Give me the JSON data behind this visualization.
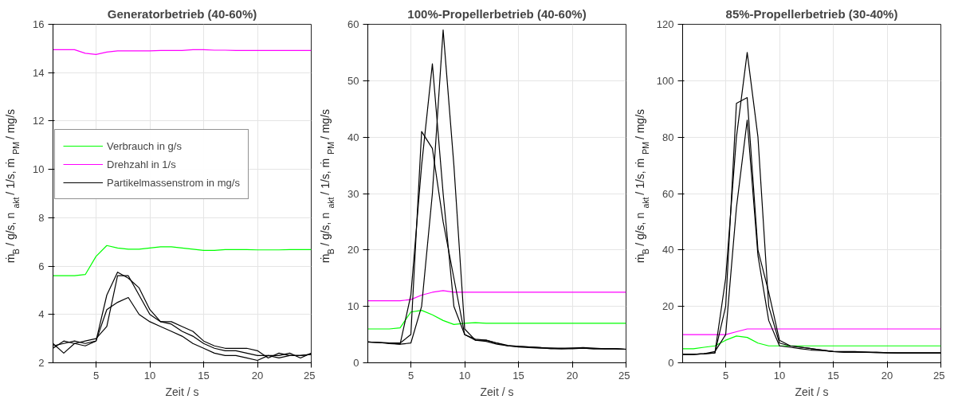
{
  "chart_data": [
    {
      "type": "line",
      "title": "Generatorbetrieb (40-60%)",
      "xlabel": "Zeit / s",
      "ylabel": "ṁ$_{B}$ / g/s,   n$_{akt}$ / 1/s,   ṁ$_{PM}$ / mg/s",
      "x": [
        1,
        2,
        3,
        4,
        5,
        6,
        7,
        8,
        9,
        10,
        11,
        12,
        13,
        14,
        15,
        16,
        17,
        18,
        19,
        20,
        21,
        22,
        23,
        24,
        25
      ],
      "xlim": [
        1,
        25
      ],
      "xticks": [
        5,
        10,
        15,
        20,
        25
      ],
      "ylim": [
        2,
        16
      ],
      "yticks": [
        2,
        4,
        6,
        8,
        10,
        12,
        14,
        16
      ],
      "grid": true,
      "legend": "top left",
      "series": [
        {
          "name": "Verbrauch in g/s",
          "color": "#00ff00",
          "values": [
            5.6,
            5.6,
            5.6,
            5.65,
            6.4,
            6.85,
            6.75,
            6.7,
            6.7,
            6.75,
            6.8,
            6.8,
            6.75,
            6.7,
            6.65,
            6.65,
            6.68,
            6.68,
            6.68,
            6.67,
            6.67,
            6.67,
            6.68,
            6.68,
            6.68
          ]
        },
        {
          "name": "Drehzahl in 1/s",
          "color": "#ff00ff",
          "values": [
            14.95,
            14.95,
            14.95,
            14.8,
            14.75,
            14.85,
            14.9,
            14.9,
            14.9,
            14.9,
            14.92,
            14.92,
            14.92,
            14.95,
            14.95,
            14.93,
            14.93,
            14.92,
            14.92,
            14.92,
            14.92,
            14.92,
            14.92,
            14.92,
            14.92
          ]
        },
        {
          "name": "Partikelmassenstrom in mg/s",
          "color": "#000000",
          "values": [
            2.7,
            2.8,
            2.9,
            2.8,
            2.9,
            4.8,
            5.75,
            5.5,
            5.1,
            4.2,
            3.7,
            3.7,
            3.5,
            3.3,
            2.9,
            2.7,
            2.6,
            2.6,
            2.6,
            2.5,
            2.2,
            2.4,
            2.3,
            2.3,
            2.35
          ]
        },
        {
          "color": "#000000",
          "values": [
            2.8,
            2.4,
            2.8,
            2.9,
            3.0,
            3.5,
            5.6,
            5.6,
            4.8,
            4.0,
            3.7,
            3.6,
            3.3,
            3.1,
            2.8,
            2.6,
            2.5,
            2.5,
            2.4,
            2.3,
            2.3,
            2.3,
            2.4,
            2.2,
            2.4
          ]
        },
        {
          "color": "#000000",
          "values": [
            2.6,
            2.9,
            2.8,
            2.7,
            2.9,
            4.2,
            4.5,
            4.7,
            4.0,
            3.7,
            3.5,
            3.3,
            3.1,
            2.8,
            2.6,
            2.4,
            2.3,
            2.3,
            2.2,
            2.1,
            2.3,
            2.2,
            2.3,
            2.3,
            2.35
          ]
        }
      ]
    },
    {
      "type": "line",
      "title": "100%-Propellerbetrieb (40-60%)",
      "xlabel": "Zeit / s",
      "ylabel": "ṁ$_{B}$ / g/s,   n$_{akt}$ / 1/s,   ṁ$_{PM}$ / mg/s",
      "x": [
        1,
        2,
        3,
        4,
        5,
        6,
        7,
        8,
        9,
        10,
        11,
        12,
        13,
        14,
        15,
        16,
        17,
        18,
        19,
        20,
        21,
        22,
        23,
        24,
        25
      ],
      "xlim": [
        1,
        25
      ],
      "xticks": [
        5,
        10,
        15,
        20,
        25
      ],
      "ylim": [
        0,
        60
      ],
      "yticks": [
        0,
        10,
        20,
        30,
        40,
        50,
        60
      ],
      "grid": true,
      "series": [
        {
          "color": "#00ff00",
          "values": [
            6,
            6,
            6,
            6.2,
            9,
            9.3,
            8.5,
            7.5,
            6.8,
            7,
            7.1,
            7,
            7,
            7,
            7,
            7,
            7,
            7,
            7,
            7,
            7,
            7,
            7,
            7,
            7
          ]
        },
        {
          "color": "#ff00ff",
          "values": [
            11,
            11,
            11,
            11,
            11.2,
            12,
            12.5,
            12.8,
            12.5,
            12.5,
            12.5,
            12.5,
            12.5,
            12.5,
            12.5,
            12.5,
            12.5,
            12.5,
            12.5,
            12.5,
            12.5,
            12.5,
            12.5,
            12.5,
            12.5
          ]
        },
        {
          "color": "#000000",
          "values": [
            3.7,
            3.6,
            3.5,
            3.3,
            3.5,
            10,
            30,
            59,
            35,
            6,
            4,
            4,
            3.5,
            3,
            2.9,
            2.8,
            2.7,
            2.6,
            2.6,
            2.6,
            2.6,
            2.5,
            2.5,
            2.5,
            2.4
          ]
        },
        {
          "color": "#000000",
          "values": [
            3.7,
            3.6,
            3.5,
            3.5,
            5,
            41,
            38,
            25,
            15,
            5,
            4,
            3.8,
            3.3,
            3,
            2.8,
            2.7,
            2.6,
            2.6,
            2.5,
            2.6,
            2.7,
            2.6,
            2.5,
            2.5,
            2.4
          ]
        },
        {
          "color": "#000000",
          "values": [
            3.7,
            3.6,
            3.4,
            3.3,
            12,
            35,
            53,
            30,
            10,
            5,
            4.2,
            4,
            3.5,
            3.1,
            2.9,
            2.8,
            2.7,
            2.5,
            2.5,
            2.5,
            2.6,
            2.5,
            2.5,
            2.5,
            2.4
          ]
        }
      ]
    },
    {
      "type": "line",
      "title": "85%-Propellerbetrieb (30-40%)",
      "xlabel": "Zeit / s",
      "ylabel": "ṁ$_{B}$ / g/s,   n$_{akt}$ / 1/s,   ṁ$_{PM}$ / mg/s",
      "x": [
        1,
        2,
        3,
        4,
        5,
        6,
        7,
        8,
        9,
        10,
        11,
        12,
        13,
        14,
        15,
        16,
        17,
        18,
        19,
        20,
        21,
        22,
        23,
        24,
        25
      ],
      "xlim": [
        1,
        25
      ],
      "xticks": [
        5,
        10,
        15,
        20,
        25
      ],
      "ylim": [
        0,
        120
      ],
      "yticks": [
        0,
        20,
        40,
        60,
        80,
        100,
        120
      ],
      "grid": true,
      "series": [
        {
          "color": "#00ff00",
          "values": [
            5,
            5,
            5.5,
            6,
            8,
            9.5,
            9,
            7,
            6,
            6,
            6,
            6,
            6,
            6,
            6,
            6,
            6,
            6,
            6,
            6,
            6,
            6,
            6,
            6,
            6
          ]
        },
        {
          "color": "#ff00ff",
          "values": [
            10,
            10,
            10,
            10,
            10,
            11,
            12,
            12,
            12,
            12,
            12,
            12,
            12,
            12,
            12,
            12,
            12,
            12,
            12,
            12,
            12,
            12,
            12,
            12,
            12
          ]
        },
        {
          "color": "#000000",
          "values": [
            3,
            3,
            3.2,
            3.5,
            20,
            92,
            94,
            40,
            25,
            8,
            6,
            5.5,
            5,
            4.5,
            4,
            3.8,
            3.8,
            3.8,
            3.6,
            3.6,
            3.5,
            3.5,
            3.5,
            3.5,
            3.5
          ]
        },
        {
          "color": "#000000",
          "values": [
            3,
            3,
            3.2,
            3.5,
            30,
            80,
            110,
            80,
            20,
            7,
            6,
            5.5,
            5,
            4.5,
            4,
            4,
            4,
            3.8,
            3.8,
            3.6,
            3.5,
            3.5,
            3.5,
            3.5,
            3.5
          ]
        },
        {
          "color": "#000000",
          "values": [
            3,
            3,
            3.2,
            4,
            10,
            55,
            86,
            38,
            15,
            6,
            5.5,
            5,
            4.5,
            4.3,
            4,
            3.8,
            3.8,
            3.7,
            3.6,
            3.5,
            3.5,
            3.5,
            3.5,
            3.5,
            3.5
          ]
        }
      ]
    }
  ]
}
